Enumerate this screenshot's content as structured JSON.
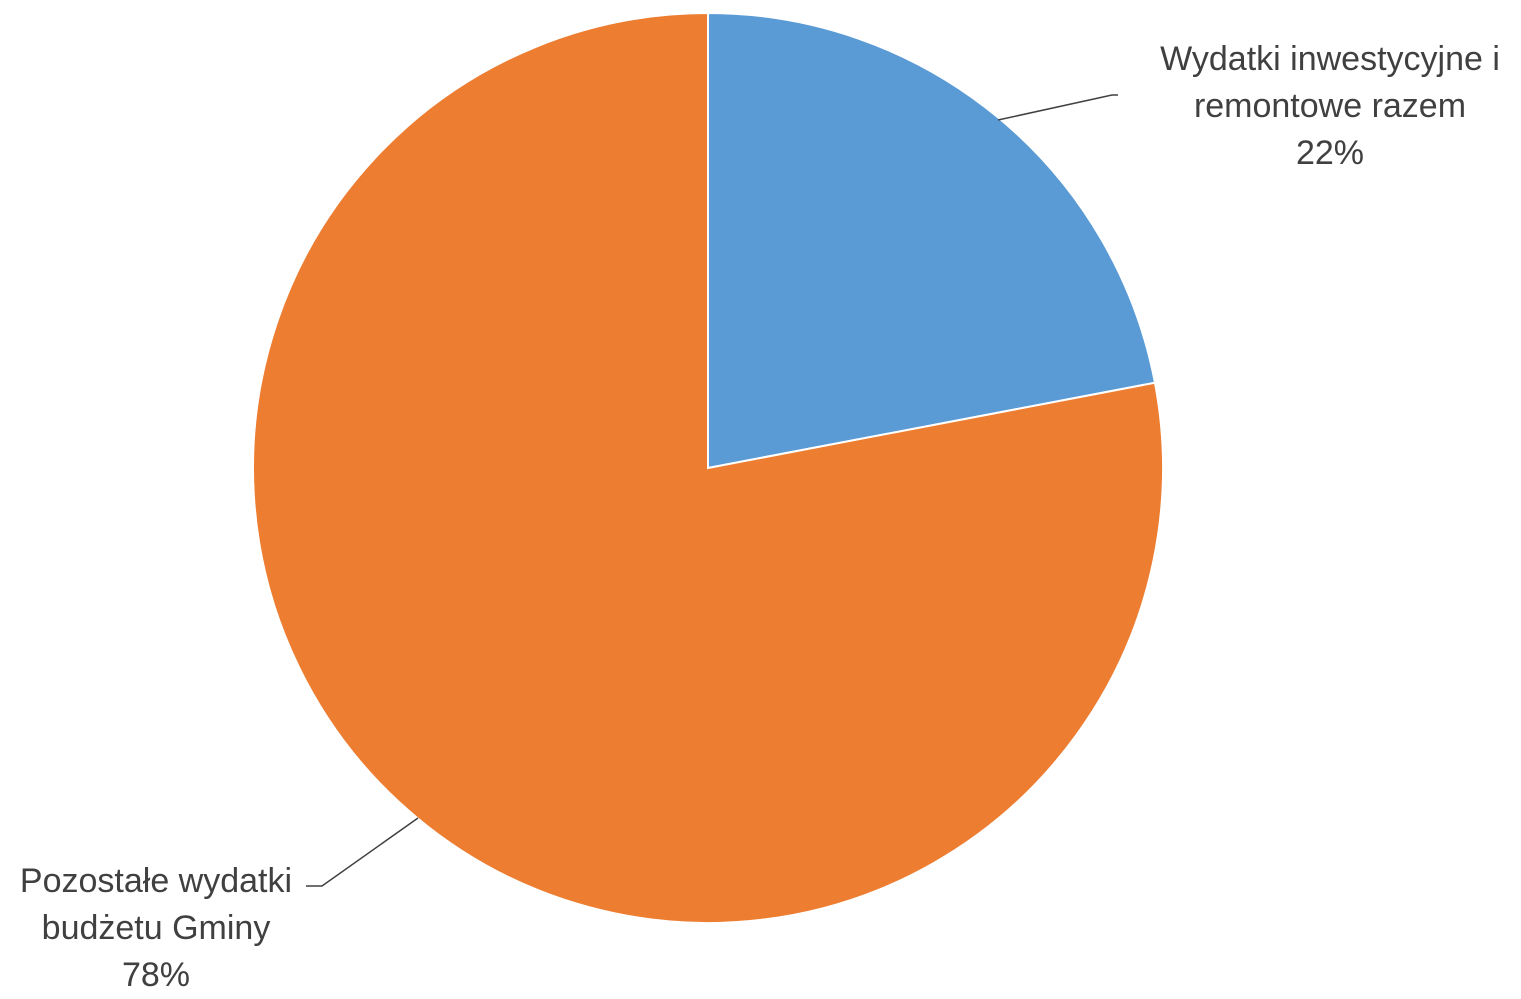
{
  "chart_data": {
    "type": "pie",
    "start_angle": "12 o'clock",
    "direction": "clockwise",
    "slices": [
      {
        "label_lines": [
          "Wydatki inwestycyjne i",
          "remontowe razem"
        ],
        "value_label": "22%",
        "value": 22,
        "color": "#5B9BD5"
      },
      {
        "label_lines": [
          "Pozostałe wydatki",
          "budżetu Gminy"
        ],
        "value_label": "78%",
        "value": 78,
        "color": "#ED7D31"
      }
    ],
    "leader_line_color": "#404040",
    "legend": "none"
  }
}
